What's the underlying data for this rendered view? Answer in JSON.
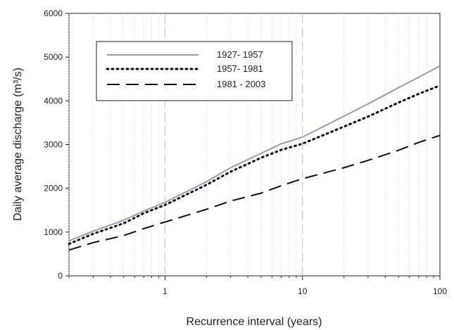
{
  "chart_data": {
    "type": "line",
    "xscale": "log",
    "xlim": [
      0.2,
      100
    ],
    "ylim": [
      0,
      6000
    ],
    "xlabel": "Recurrence interval (years)",
    "ylabel": "Daily average discharge (m³/s)",
    "x_ticks": [
      "1",
      "10",
      "100"
    ],
    "y_ticks": [
      "0",
      "1000",
      "2000",
      "3000",
      "4000",
      "5000",
      "6000"
    ],
    "grid": "vertical dotted minor lines, dashed at 1 and 10",
    "legend_position": "top-left",
    "series": [
      {
        "name": "1927- 1957",
        "style": "solid",
        "color": "#9a9ab0",
        "x": [
          0.2,
          0.3,
          0.5,
          0.7,
          1,
          2,
          3,
          5,
          7,
          10,
          20,
          30,
          50,
          70,
          100
        ],
        "y": [
          800,
          1020,
          1270,
          1480,
          1680,
          2150,
          2470,
          2800,
          3020,
          3170,
          3650,
          3930,
          4300,
          4540,
          4800
        ]
      },
      {
        "name": "1957- 1981",
        "style": "dotted",
        "color": "#111111",
        "x": [
          0.2,
          0.3,
          0.5,
          0.7,
          1,
          2,
          3,
          5,
          7,
          10,
          20,
          30,
          50,
          70,
          100
        ],
        "y": [
          730,
          960,
          1200,
          1430,
          1620,
          2080,
          2380,
          2700,
          2880,
          3020,
          3410,
          3640,
          3960,
          4160,
          4350
        ]
      },
      {
        "name": "1981 - 2003",
        "style": "dashed",
        "color": "#111111",
        "x": [
          0.2,
          0.3,
          0.5,
          0.7,
          1,
          2,
          3,
          5,
          7,
          10,
          20,
          30,
          50,
          70,
          100
        ],
        "y": [
          590,
          760,
          920,
          1080,
          1230,
          1520,
          1710,
          1890,
          2060,
          2220,
          2470,
          2640,
          2870,
          3050,
          3210
        ]
      }
    ]
  }
}
